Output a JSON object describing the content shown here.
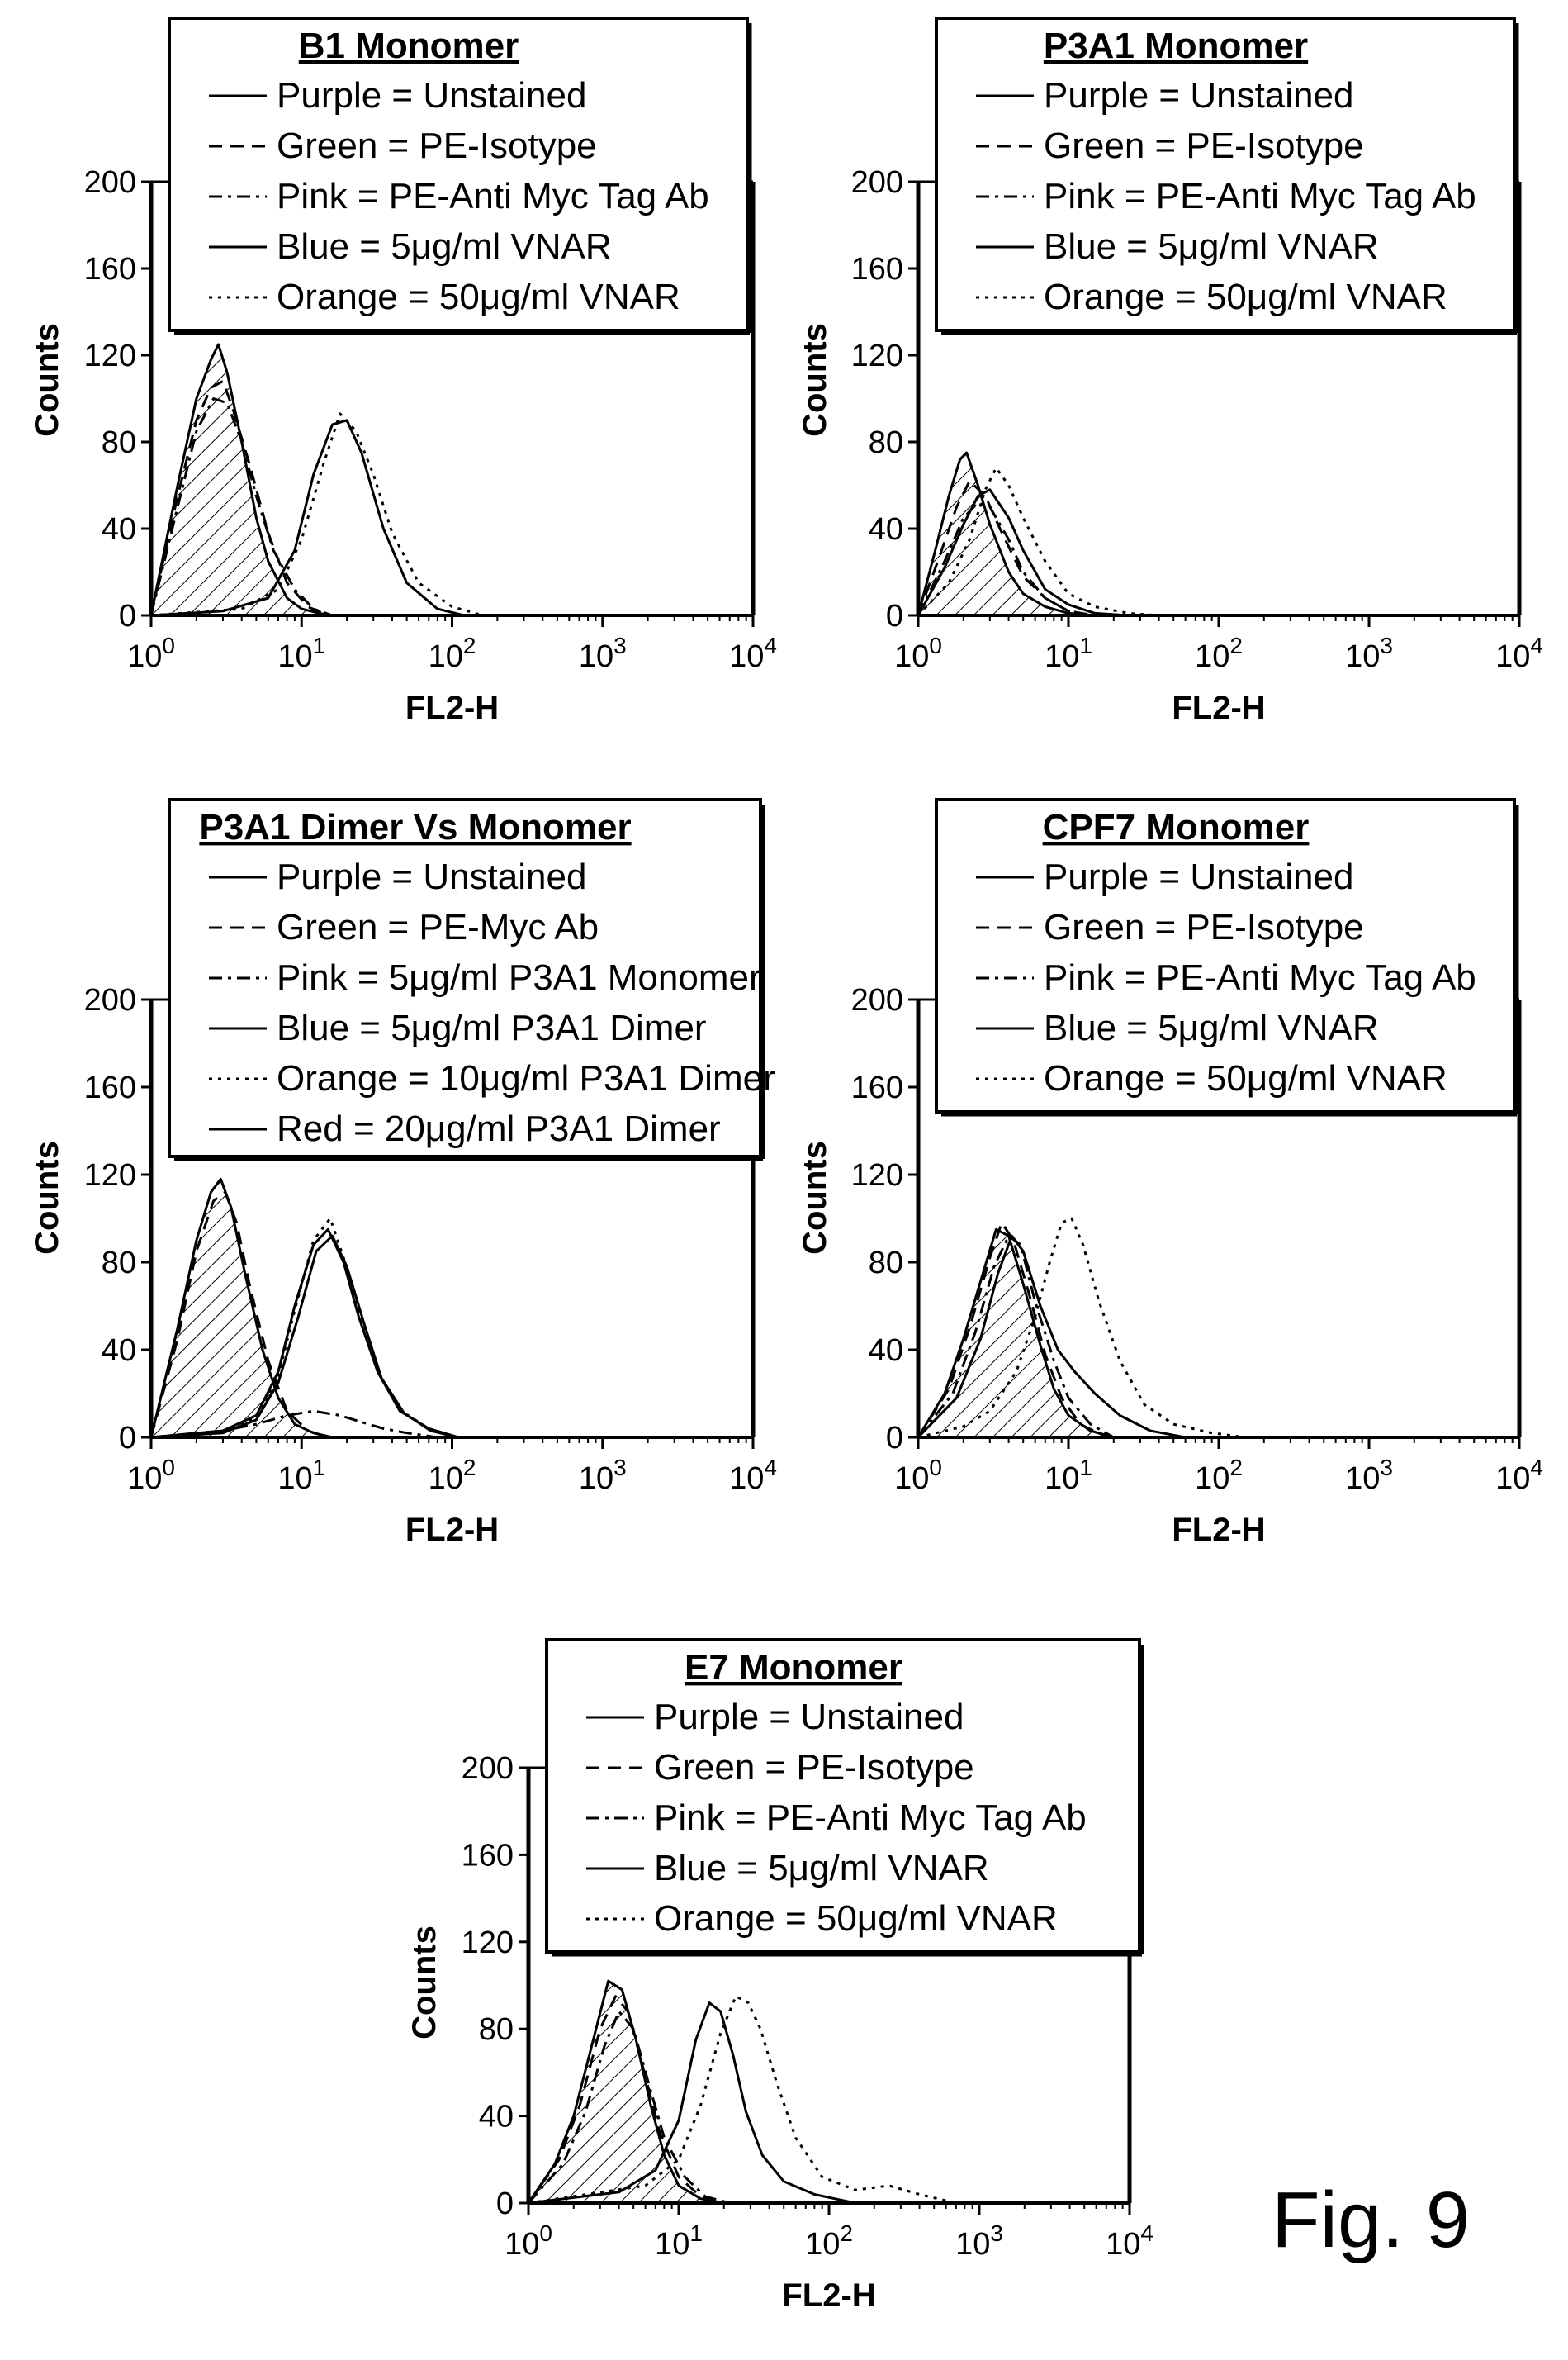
{
  "figure_label": "Fig. 9",
  "chart_data": [
    {
      "type": "line",
      "title": "B1 Monomer",
      "xlabel": "FL2-H",
      "ylabel": "Counts",
      "x_scale": "log",
      "xlim": [
        1,
        10000
      ],
      "ylim": [
        0,
        200
      ],
      "x_ticks": [
        "10^0",
        "10^1",
        "10^2",
        "10^3",
        "10^4"
      ],
      "y_ticks": [
        "0",
        "40",
        "80",
        "120",
        "160",
        "200"
      ],
      "legend": "top",
      "legend_entries": [
        {
          "style": "solid",
          "text": "Purple = Unstained"
        },
        {
          "style": "dashed",
          "text": "Green = PE-Isotype"
        },
        {
          "style": "dashdot",
          "text": "Pink = PE-Anti Myc Tag Ab"
        },
        {
          "style": "solid",
          "text": "Blue = 5μg/ml VNAR"
        },
        {
          "style": "dotted",
          "text": "Orange = 50μg/ml VNAR"
        }
      ],
      "series": [
        {
          "name": "Purple = Unstained",
          "style": "solid",
          "hatched": true,
          "x": [
            1,
            1.5,
            2,
            2.5,
            2.8,
            3.2,
            4,
            5,
            6,
            8,
            10,
            15
          ],
          "y": [
            0,
            60,
            100,
            118,
            125,
            112,
            80,
            45,
            25,
            8,
            3,
            0
          ]
        },
        {
          "name": "Green = PE-Isotype",
          "style": "dashed",
          "x": [
            1,
            1.5,
            2,
            2.5,
            3,
            3.5,
            4.5,
            6,
            8,
            11,
            15
          ],
          "y": [
            0,
            55,
            90,
            105,
            108,
            95,
            70,
            38,
            15,
            4,
            0
          ]
        },
        {
          "name": "Pink = PE-Anti Myc Tag Ab",
          "style": "dashdot",
          "x": [
            1,
            1.5,
            2,
            2.6,
            3.2,
            4,
            5,
            6.5,
            9,
            12,
            16
          ],
          "y": [
            0,
            50,
            85,
            100,
            98,
            80,
            55,
            30,
            12,
            3,
            0
          ]
        },
        {
          "name": "Blue = 5μg/ml VNAR",
          "style": "solid",
          "x": [
            1,
            3,
            6,
            9,
            12,
            16,
            20,
            25,
            35,
            50,
            80,
            120
          ],
          "y": [
            0,
            2,
            8,
            30,
            65,
            88,
            90,
            75,
            40,
            15,
            3,
            0
          ]
        },
        {
          "name": "Orange = 50μg/ml VNAR",
          "style": "dotted",
          "x": [
            1,
            4,
            7,
            10,
            14,
            18,
            23,
            30,
            40,
            60,
            100,
            160
          ],
          "y": [
            0,
            3,
            12,
            35,
            70,
            93,
            85,
            65,
            38,
            15,
            4,
            0
          ]
        }
      ]
    },
    {
      "type": "line",
      "title": "P3A1 Monomer",
      "xlabel": "FL2-H",
      "ylabel": "Counts",
      "x_scale": "log",
      "xlim": [
        1,
        10000
      ],
      "ylim": [
        0,
        200
      ],
      "x_ticks": [
        "10^0",
        "10^1",
        "10^2",
        "10^3",
        "10^4"
      ],
      "y_ticks": [
        "0",
        "40",
        "80",
        "120",
        "160",
        "200"
      ],
      "legend": "top",
      "legend_entries": [
        {
          "style": "solid",
          "text": "Purple = Unstained"
        },
        {
          "style": "dashed",
          "text": "Green = PE-Isotype"
        },
        {
          "style": "dashdot",
          "text": "Pink = PE-Anti Myc Tag Ab"
        },
        {
          "style": "solid",
          "text": "Blue = 5μg/ml VNAR"
        },
        {
          "style": "dotted",
          "text": "Orange = 50μg/ml VNAR"
        }
      ],
      "series": [
        {
          "name": "Purple = Unstained",
          "style": "solid",
          "hatched": true,
          "x": [
            1,
            1.3,
            1.6,
            1.9,
            2.1,
            2.5,
            3,
            4,
            5,
            7,
            10,
            15
          ],
          "y": [
            0,
            30,
            55,
            72,
            75,
            60,
            42,
            20,
            10,
            4,
            1,
            0
          ]
        },
        {
          "name": "Green = PE-Isotype",
          "style": "dashed",
          "x": [
            1,
            1.4,
            1.8,
            2.2,
            2.8,
            3.5,
            5,
            7,
            10,
            14
          ],
          "y": [
            0,
            28,
            50,
            62,
            55,
            40,
            18,
            8,
            2,
            0
          ]
        },
        {
          "name": "Pink = PE-Anti Myc Tag Ab",
          "style": "dashdot",
          "x": [
            1,
            1.5,
            2,
            2.5,
            3,
            4,
            5,
            7,
            10,
            15
          ],
          "y": [
            0,
            25,
            45,
            52,
            50,
            35,
            20,
            8,
            2,
            0
          ]
        },
        {
          "name": "Blue = 5μg/ml VNAR",
          "style": "solid",
          "x": [
            1,
            1.5,
            2,
            2.5,
            3,
            4,
            5,
            7,
            10,
            15,
            25
          ],
          "y": [
            0,
            22,
            42,
            55,
            58,
            45,
            30,
            12,
            5,
            1,
            0
          ]
        },
        {
          "name": "Orange = 50μg/ml VNAR",
          "style": "dotted",
          "x": [
            1,
            1.6,
            2.2,
            2.8,
            3.3,
            4,
            5,
            7,
            10,
            15,
            25,
            40
          ],
          "y": [
            0,
            15,
            35,
            58,
            68,
            60,
            45,
            25,
            10,
            4,
            1,
            0
          ]
        }
      ]
    },
    {
      "type": "line",
      "title": "P3A1 Dimer Vs Monomer",
      "xlabel": "FL2-H",
      "ylabel": "Counts",
      "x_scale": "log",
      "xlim": [
        1,
        10000
      ],
      "ylim": [
        0,
        200
      ],
      "x_ticks": [
        "10^0",
        "10^1",
        "10^2",
        "10^3",
        "10^4"
      ],
      "y_ticks": [
        "0",
        "40",
        "80",
        "120",
        "160",
        "200"
      ],
      "legend": "top",
      "legend_entries": [
        {
          "style": "solid",
          "text": "Purple = Unstained"
        },
        {
          "style": "dashed",
          "text": "Green = PE-Myc Ab"
        },
        {
          "style": "dashdot",
          "text": "Pink = 5μg/ml P3A1 Monomer"
        },
        {
          "style": "solid",
          "text": "Blue = 5μg/ml P3A1 Dimer"
        },
        {
          "style": "dotted",
          "text": "Orange = 10μg/ml P3A1 Dimer"
        },
        {
          "style": "solid",
          "text": "Red = 20μg/ml P3A1 Dimer"
        }
      ],
      "series": [
        {
          "name": "Purple = Unstained",
          "style": "solid",
          "hatched": true,
          "x": [
            1,
            1.5,
            2,
            2.5,
            2.9,
            3.4,
            4.2,
            5.5,
            7,
            9,
            12,
            16
          ],
          "y": [
            0,
            50,
            90,
            112,
            118,
            105,
            75,
            40,
            18,
            6,
            2,
            0
          ]
        },
        {
          "name": "Green = PE-Myc Ab",
          "style": "dashed",
          "x": [
            1,
            1.5,
            2,
            2.6,
            3.1,
            3.7,
            4.5,
            6,
            8,
            11,
            15
          ],
          "y": [
            0,
            45,
            85,
            108,
            112,
            98,
            70,
            35,
            12,
            3,
            0
          ]
        },
        {
          "name": "Pink = 5μg/ml P3A1 Monomer",
          "style": "dashdot",
          "x": [
            1,
            3,
            5,
            8,
            12,
            18,
            25,
            35,
            50,
            80
          ],
          "y": [
            0,
            3,
            6,
            10,
            12,
            10,
            7,
            4,
            2,
            0
          ]
        },
        {
          "name": "Blue = 5μg/ml P3A1 Dimer",
          "style": "solid",
          "x": [
            1,
            3,
            5,
            7,
            9,
            12,
            15,
            19,
            24,
            32,
            45,
            70,
            110
          ],
          "y": [
            0,
            3,
            10,
            30,
            60,
            88,
            95,
            80,
            55,
            30,
            12,
            4,
            0
          ]
        },
        {
          "name": "Orange = 10μg/ml P3A1 Dimer",
          "style": "dotted",
          "x": [
            1,
            3,
            5,
            7,
            9,
            12,
            15.5,
            19,
            25,
            33,
            46,
            70,
            110
          ],
          "y": [
            0,
            3,
            9,
            28,
            58,
            90,
            100,
            82,
            55,
            28,
            12,
            4,
            0
          ]
        },
        {
          "name": "Red = 20μg/ml P3A1 Dimer",
          "style": "solid",
          "x": [
            1,
            3,
            5,
            7,
            9.5,
            12.5,
            16,
            20,
            26,
            34,
            48,
            72,
            110
          ],
          "y": [
            0,
            2,
            8,
            25,
            55,
            85,
            92,
            78,
            52,
            27,
            11,
            3,
            0
          ]
        }
      ]
    },
    {
      "type": "line",
      "title": "CPF7 Monomer",
      "xlabel": "FL2-H",
      "ylabel": "Counts",
      "x_scale": "log",
      "xlim": [
        1,
        10000
      ],
      "ylim": [
        0,
        200
      ],
      "x_ticks": [
        "10^0",
        "10^1",
        "10^2",
        "10^3",
        "10^4"
      ],
      "y_ticks": [
        "0",
        "40",
        "80",
        "120",
        "160",
        "200"
      ],
      "legend": "top",
      "legend_entries": [
        {
          "style": "solid",
          "text": "Purple = Unstained"
        },
        {
          "style": "dashed",
          "text": "Green = PE-Isotype"
        },
        {
          "style": "dashdot",
          "text": "Pink = PE-Anti Myc Tag Ab"
        },
        {
          "style": "solid",
          "text": "Blue = 5μg/ml VNAR"
        },
        {
          "style": "dotted",
          "text": "Orange = 50μg/ml VNAR"
        }
      ],
      "series": [
        {
          "name": "Purple = Unstained",
          "style": "solid",
          "hatched": true,
          "x": [
            1,
            1.5,
            2,
            2.7,
            3.3,
            4,
            5,
            6.5,
            8,
            10,
            14,
            20
          ],
          "y": [
            0,
            20,
            45,
            75,
            95,
            92,
            70,
            42,
            22,
            10,
            3,
            0
          ]
        },
        {
          "name": "Green = PE-Isotype",
          "style": "dashed",
          "x": [
            1,
            1.6,
            2.2,
            3,
            3.6,
            4.3,
            5.5,
            7,
            9,
            12,
            18
          ],
          "y": [
            0,
            22,
            50,
            82,
            98,
            90,
            65,
            38,
            18,
            6,
            0
          ]
        },
        {
          "name": "Pink = PE-Anti Myc Tag Ab",
          "style": "dashdot",
          "x": [
            1,
            1.7,
            2.4,
            3.2,
            4,
            4.8,
            6,
            8,
            10,
            14,
            20
          ],
          "y": [
            0,
            20,
            48,
            78,
            92,
            88,
            62,
            35,
            18,
            6,
            0
          ]
        },
        {
          "name": "Blue = 5μg/ml VNAR",
          "style": "solid",
          "x": [
            1,
            1.8,
            2.6,
            3.4,
            4.2,
            5,
            6.5,
            8.5,
            11,
            15,
            22,
            35,
            60
          ],
          "y": [
            0,
            18,
            45,
            75,
            92,
            85,
            60,
            40,
            30,
            20,
            10,
            3,
            0
          ]
        },
        {
          "name": "Orange = 50μg/ml VNAR",
          "style": "dotted",
          "x": [
            1,
            2,
            3,
            4.5,
            6,
            7.5,
            9,
            10.5,
            12.5,
            16,
            22,
            32,
            50,
            90,
            150
          ],
          "y": [
            0,
            5,
            12,
            30,
            55,
            80,
            98,
            100,
            88,
            62,
            35,
            15,
            6,
            2,
            0
          ]
        }
      ]
    },
    {
      "type": "line",
      "title": "E7 Monomer",
      "xlabel": "FL2-H",
      "ylabel": "Counts",
      "x_scale": "log",
      "xlim": [
        1,
        10000
      ],
      "ylim": [
        0,
        200
      ],
      "x_ticks": [
        "10^0",
        "10^1",
        "10^2",
        "10^3",
        "10^4"
      ],
      "y_ticks": [
        "0",
        "40",
        "80",
        "120",
        "160",
        "200"
      ],
      "legend": "top",
      "legend_entries": [
        {
          "style": "solid",
          "text": "Purple = Unstained"
        },
        {
          "style": "dashed",
          "text": "Green = PE-Isotype"
        },
        {
          "style": "dashdot",
          "text": "Pink = PE-Anti Myc Tag Ab"
        },
        {
          "style": "solid",
          "text": "Blue = 5μg/ml VNAR"
        },
        {
          "style": "dotted",
          "text": "Orange = 50μg/ml VNAR"
        }
      ],
      "series": [
        {
          "name": "Purple = Unstained",
          "style": "solid",
          "hatched": true,
          "x": [
            1,
            1.5,
            2,
            2.7,
            3.4,
            4.2,
            5.2,
            6.5,
            8,
            10,
            14,
            20
          ],
          "y": [
            0,
            18,
            40,
            75,
            102,
            98,
            75,
            45,
            22,
            8,
            2,
            0
          ]
        },
        {
          "name": "Green = PE-Isotype",
          "style": "dashed",
          "x": [
            1,
            1.6,
            2.2,
            3,
            3.8,
            4.6,
            5.8,
            7.5,
            10,
            14,
            20
          ],
          "y": [
            0,
            20,
            45,
            80,
            95,
            88,
            62,
            32,
            12,
            3,
            0
          ]
        },
        {
          "name": "Pink = PE-Anti Myc Tag Ab",
          "style": "dashdot",
          "x": [
            1,
            1.7,
            2.4,
            3.2,
            4,
            5,
            6.3,
            8,
            11,
            15,
            22
          ],
          "y": [
            0,
            18,
            42,
            72,
            88,
            80,
            55,
            30,
            12,
            3,
            0
          ]
        },
        {
          "name": "Blue = 5μg/ml VNAR",
          "style": "solid",
          "x": [
            1,
            4,
            7,
            10,
            13,
            16,
            19,
            23,
            28,
            36,
            50,
            80,
            150
          ],
          "y": [
            0,
            5,
            15,
            38,
            75,
            92,
            88,
            68,
            42,
            22,
            10,
            4,
            0
          ]
        },
        {
          "name": "Orange = 50μg/ml VNAR",
          "style": "dotted",
          "x": [
            1,
            6,
            10,
            14,
            19,
            24,
            29,
            35,
            45,
            60,
            90,
            150,
            250,
            400,
            700
          ],
          "y": [
            0,
            8,
            20,
            45,
            78,
            95,
            92,
            80,
            55,
            30,
            12,
            6,
            8,
            4,
            0
          ]
        }
      ]
    }
  ]
}
